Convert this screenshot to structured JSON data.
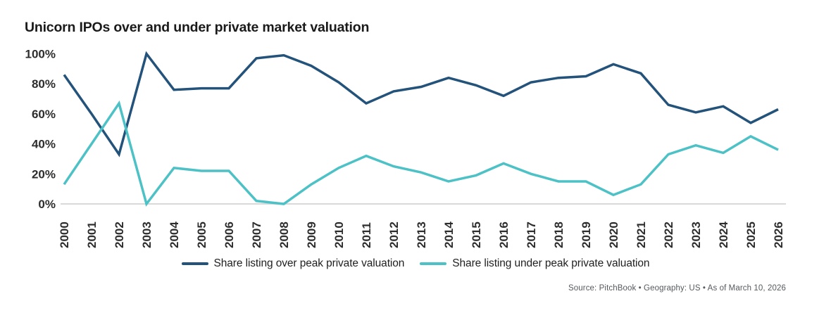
{
  "title": "Unicorn IPOs over and under private market valuation",
  "source_line": "Source: PitchBook  •  Geography: US  •  As of March 10, 2026",
  "colors": {
    "over": "#23527a",
    "under": "#4cc1c6",
    "baseline": "#d9d9d9",
    "axis_text": "#2d2d2d",
    "source_text": "#565a5e"
  },
  "legend": [
    {
      "label": "Share listing over peak private valuation",
      "series": "over"
    },
    {
      "label": "Share listing under peak private valuation",
      "series": "under"
    }
  ],
  "chart_data": {
    "type": "line",
    "title": "Unicorn IPOs over and under private market valuation",
    "xlabel": "",
    "ylabel": "",
    "ylim": [
      0,
      100
    ],
    "grid": false,
    "legend_position": "bottom",
    "x": [
      2000,
      2001,
      2002,
      2003,
      2004,
      2005,
      2006,
      2007,
      2008,
      2009,
      2010,
      2011,
      2012,
      2013,
      2014,
      2015,
      2016,
      2017,
      2018,
      2019,
      2020,
      2021,
      2022,
      2023,
      2024,
      2025,
      2026
    ],
    "y_ticks": [
      {
        "label": "0%",
        "value": 0
      },
      {
        "label": "20%",
        "value": 20
      },
      {
        "label": "40%",
        "value": 40
      },
      {
        "label": "60%",
        "value": 60
      },
      {
        "label": "80%",
        "value": 80
      },
      {
        "label": "100%",
        "value": 100
      }
    ],
    "series": [
      {
        "name": "Share listing over peak private valuation",
        "color_key": "over",
        "values": [
          86,
          60,
          33,
          100,
          76,
          77,
          77,
          97,
          99,
          92,
          81,
          67,
          75,
          78,
          84,
          79,
          72,
          81,
          84,
          85,
          93,
          87,
          66,
          61,
          65,
          54,
          63
        ]
      },
      {
        "name": "Share listing under peak private valuation",
        "color_key": "under",
        "values": [
          13,
          40,
          67,
          0,
          24,
          22,
          22,
          2,
          0,
          13,
          24,
          32,
          25,
          21,
          15,
          19,
          27,
          20,
          15,
          15,
          6,
          13,
          33,
          39,
          34,
          45,
          36
        ]
      }
    ]
  }
}
